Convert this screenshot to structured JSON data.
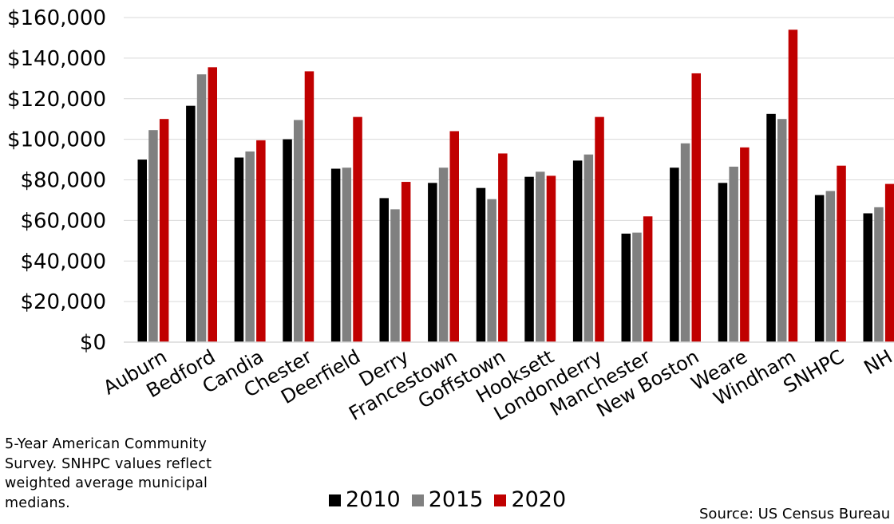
{
  "chart_data": {
    "type": "bar",
    "categories": [
      "Auburn",
      "Bedford",
      "Candia",
      "Chester",
      "Deerfield",
      "Derry",
      "Francestown",
      "Goffstown",
      "Hooksett",
      "Londonderry",
      "Manchester",
      "New Boston",
      "Weare",
      "Windham",
      "SNHPC",
      "NH"
    ],
    "series": [
      {
        "name": "2010",
        "color": "#000000",
        "values": [
          90000,
          116500,
          91000,
          100000,
          85500,
          71000,
          78500,
          76000,
          81500,
          89500,
          53500,
          86000,
          78500,
          112500,
          72500,
          63500
        ]
      },
      {
        "name": "2015",
        "color": "#808080",
        "values": [
          104500,
          132000,
          94000,
          109500,
          86000,
          65500,
          86000,
          70500,
          84000,
          92500,
          54000,
          98000,
          86500,
          110000,
          74500,
          66500
        ]
      },
      {
        "name": "2020",
        "color": "#c00000",
        "values": [
          110000,
          135500,
          99500,
          133500,
          111000,
          79000,
          104000,
          93000,
          82000,
          111000,
          62000,
          132500,
          96000,
          154000,
          87000,
          78000
        ]
      }
    ],
    "y_ticks": [
      "$0",
      "$20,000",
      "$40,000",
      "$60,000",
      "$80,000",
      "$100,000",
      "$120,000",
      "$140,000",
      "$160,000"
    ],
    "ylim": [
      0,
      160000
    ],
    "grid": true,
    "legend_position": "bottom"
  },
  "note_lines": [
    "5-Year American Community",
    "Survey. SNHPC values reflect",
    "weighted average municipal",
    "medians."
  ],
  "legend": [
    "2010",
    "2015",
    "2020"
  ],
  "source": "Source: US Census Bureau"
}
